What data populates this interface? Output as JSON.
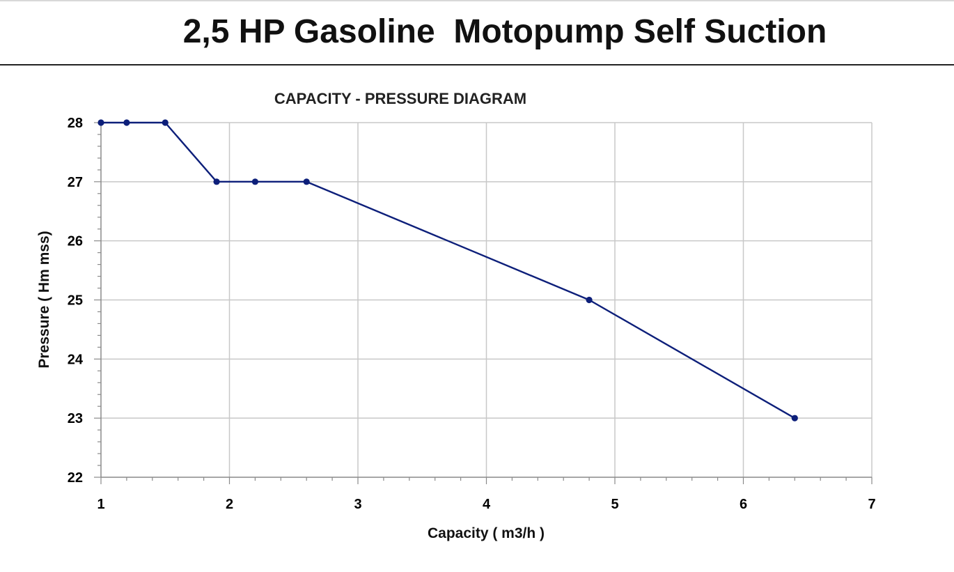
{
  "page": {
    "title": "2,5 HP Gasoline  Motopump Self Suction"
  },
  "chart_data": {
    "type": "line",
    "title": "CAPACITY - PRESSURE DIAGRAM",
    "xlabel": "Capacity ( m3/h )",
    "ylabel": "Pressure ( Hm mss)",
    "xlim": [
      1,
      7
    ],
    "ylim": [
      22,
      28
    ],
    "xticks": [
      "1",
      "2",
      "3",
      "4",
      "5",
      "6",
      "7"
    ],
    "yticks": [
      "22",
      "23",
      "24",
      "25",
      "26",
      "27",
      "28"
    ],
    "grid": true,
    "legend": "none",
    "series": [
      {
        "color": "#0d1f7a",
        "x": [
          1,
          1.2,
          1.5,
          1.9,
          2.2,
          2.6,
          4.8,
          6.4
        ],
        "y": [
          28,
          28,
          28,
          27,
          27,
          27,
          25,
          23
        ]
      }
    ]
  }
}
